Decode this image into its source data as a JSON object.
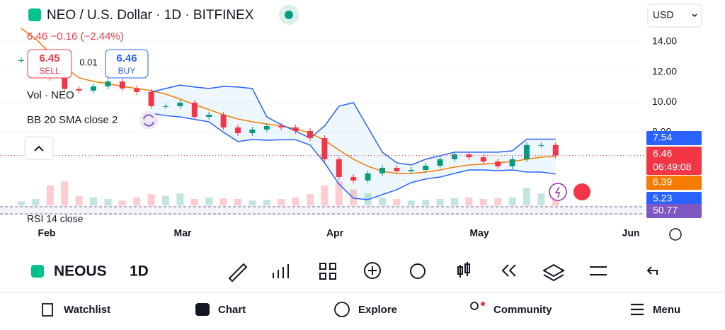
{
  "header": {
    "title": "NEO / U.S. Dollar · 1D · BITFINEX",
    "quote": "6.46 −0.16 (−2.44%)",
    "currency": "USD",
    "sell_price": "6.45",
    "sell": "SELL",
    "spread": "0.01",
    "buy_price": "6.46",
    "buy": "BUY",
    "volume_label": "Vol · NEO",
    "bb_label": "BB 20 SMA close 2",
    "rsi_label": "RSI 14 close",
    "rsi_value": "50.77",
    "countdown": "06:49:08"
  },
  "chart_data": {
    "type": "candlestick",
    "ylim": [
      3.15,
      16.77
    ],
    "yticks": [
      {
        "value": 14,
        "label": "14.00"
      },
      {
        "value": 12,
        "label": "12.00"
      },
      {
        "value": 10,
        "label": "10.00"
      },
      {
        "value": 8,
        "label": "8.00"
      }
    ],
    "months": [
      "Feb",
      "Mar",
      "Apr",
      "May",
      "Jun"
    ],
    "series": [
      {
        "name": "close",
        "color": "#089981",
        "values": [
          12.78,
          13.25,
          11.6,
          10.87,
          10.76,
          11.04,
          11.37,
          10.9,
          10.67,
          9.73,
          9.73,
          9.96,
          9.02,
          9.16,
          8.32,
          7.94,
          8.18,
          8.41,
          8.32,
          8.08,
          7.61,
          6.21,
          5.03,
          4.8,
          5.27,
          5.64,
          5.41,
          5.5,
          5.78,
          6.21,
          6.53,
          6.34,
          6.06,
          5.74,
          6.21,
          7.15,
          7.15,
          6.46
        ]
      },
      {
        "name": "basis",
        "color": "#f57c00",
        "values": [
          14.89,
          14.19,
          13.25,
          12.31,
          11.61,
          11.37,
          11.23,
          11.04,
          10.9,
          10.76,
          10.53,
          10.2,
          9.83,
          9.5,
          9.16,
          8.88,
          8.69,
          8.55,
          8.41,
          8.23,
          7.94,
          7.47,
          6.82,
          6.21,
          5.74,
          5.41,
          5.27,
          5.27,
          5.36,
          5.5,
          5.69,
          5.83,
          5.88,
          5.97,
          6.06,
          6.21,
          6.35,
          6.39
        ]
      },
      {
        "name": "upper",
        "color": "#2962ff",
        "values": [
          null,
          null,
          null,
          null,
          null,
          null,
          null,
          null,
          null,
          10.67,
          10.9,
          11.13,
          11.0,
          10.9,
          11.04,
          11.0,
          10.9,
          9.02,
          8.5,
          8.08,
          7.61,
          8.41,
          9.73,
          9.96,
          8.32,
          6.68,
          5.97,
          5.83,
          6.21,
          6.44,
          6.68,
          6.68,
          6.68,
          6.68,
          6.77,
          7.54,
          7.54,
          7.54
        ]
      },
      {
        "name": "lower",
        "color": "#2962ff",
        "values": [
          null,
          null,
          null,
          null,
          null,
          null,
          null,
          null,
          null,
          9.26,
          9.1,
          9.02,
          8.85,
          8.69,
          8.0,
          7.38,
          7.52,
          7.47,
          7.5,
          7.5,
          7.15,
          5.97,
          4.56,
          3.62,
          3.53,
          3.86,
          4.19,
          4.66,
          4.9,
          5.03,
          5.27,
          5.5,
          5.5,
          5.45,
          5.5,
          5.36,
          5.36,
          5.23
        ]
      }
    ],
    "volume": {
      "vlim": [
        0,
        80
      ],
      "values": [
        5,
        8,
        25,
        30,
        12,
        10,
        8,
        6,
        10,
        14,
        12,
        15,
        8,
        10,
        9,
        8,
        6,
        7,
        8,
        10,
        14,
        25,
        30,
        20,
        15,
        10,
        8,
        6,
        7,
        8,
        9,
        10,
        8,
        9,
        10,
        22,
        15,
        10
      ]
    }
  },
  "toolbar": {
    "symbol": "NEOUS",
    "interval": "1D"
  },
  "nav": [
    "Watchlist",
    "Chart",
    "Explore",
    "Community",
    "Menu"
  ]
}
